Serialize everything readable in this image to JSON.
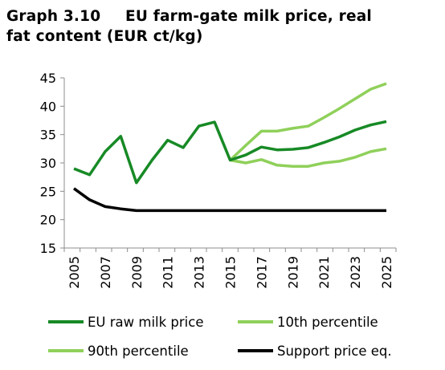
{
  "title": {
    "number": "Graph 3.10",
    "line1": "EU farm-gate milk price, real",
    "line2": "fat content (EUR ct/kg)"
  },
  "chart_data": {
    "type": "line",
    "title": "Graph 3.10 EU farm-gate milk price, real fat content (EUR ct/kg)",
    "xlabel": "",
    "ylabel": "",
    "ylim": [
      15,
      45
    ],
    "yticks": [
      "15",
      "20",
      "25",
      "30",
      "35",
      "40",
      "45"
    ],
    "xlim": [
      2005,
      2025
    ],
    "xticks": [
      "2005",
      "2007",
      "2009",
      "2011",
      "2013",
      "2015",
      "2017",
      "2019",
      "2021",
      "2023",
      "2025"
    ],
    "grid": false,
    "legend_position": "bottom",
    "colors": {
      "eu_raw": "#178a25",
      "p10": "#8fd05a",
      "p90": "#8fd05a",
      "support": "#000000",
      "axis": "#8c8c8c"
    },
    "series": [
      {
        "name": "EU raw milk price",
        "color": "#178a25",
        "x": [
          2005,
          2006,
          2007,
          2008,
          2009,
          2010,
          2011,
          2012,
          2013,
          2014,
          2015,
          2016,
          2017,
          2018,
          2019,
          2020,
          2021,
          2022,
          2023,
          2024,
          2025
        ],
        "values": [
          29.0,
          27.9,
          32.0,
          34.7,
          26.5,
          30.5,
          34.0,
          32.7,
          36.5,
          37.2,
          30.5,
          31.4,
          32.8,
          32.3,
          32.4,
          32.7,
          33.6,
          34.6,
          35.8,
          36.7,
          37.3
        ]
      },
      {
        "name": "10th percentile",
        "color": "#8fd05a",
        "x": [
          2015,
          2016,
          2017,
          2018,
          2019,
          2020,
          2021,
          2022,
          2023,
          2024,
          2025
        ],
        "values": [
          30.5,
          30.0,
          30.6,
          29.6,
          29.4,
          29.4,
          30.0,
          30.3,
          31.0,
          32.0,
          32.5
        ]
      },
      {
        "name": "90th percentile",
        "color": "#8fd05a",
        "x": [
          2015,
          2016,
          2017,
          2018,
          2019,
          2020,
          2021,
          2022,
          2023,
          2024,
          2025
        ],
        "values": [
          30.5,
          33.1,
          35.6,
          35.6,
          36.1,
          36.5,
          38.0,
          39.6,
          41.3,
          43.0,
          44.0
        ]
      },
      {
        "name": "Support price eq.",
        "color": "#000000",
        "x": [
          2005,
          2006,
          2007,
          2008,
          2009,
          2010,
          2011,
          2012,
          2013,
          2014,
          2015,
          2016,
          2017,
          2018,
          2019,
          2020,
          2021,
          2022,
          2023,
          2024,
          2025
        ],
        "values": [
          25.5,
          23.5,
          22.3,
          21.9,
          21.6,
          21.6,
          21.6,
          21.6,
          21.6,
          21.6,
          21.6,
          21.6,
          21.6,
          21.6,
          21.6,
          21.6,
          21.6,
          21.6,
          21.6,
          21.6,
          21.6
        ]
      }
    ]
  }
}
